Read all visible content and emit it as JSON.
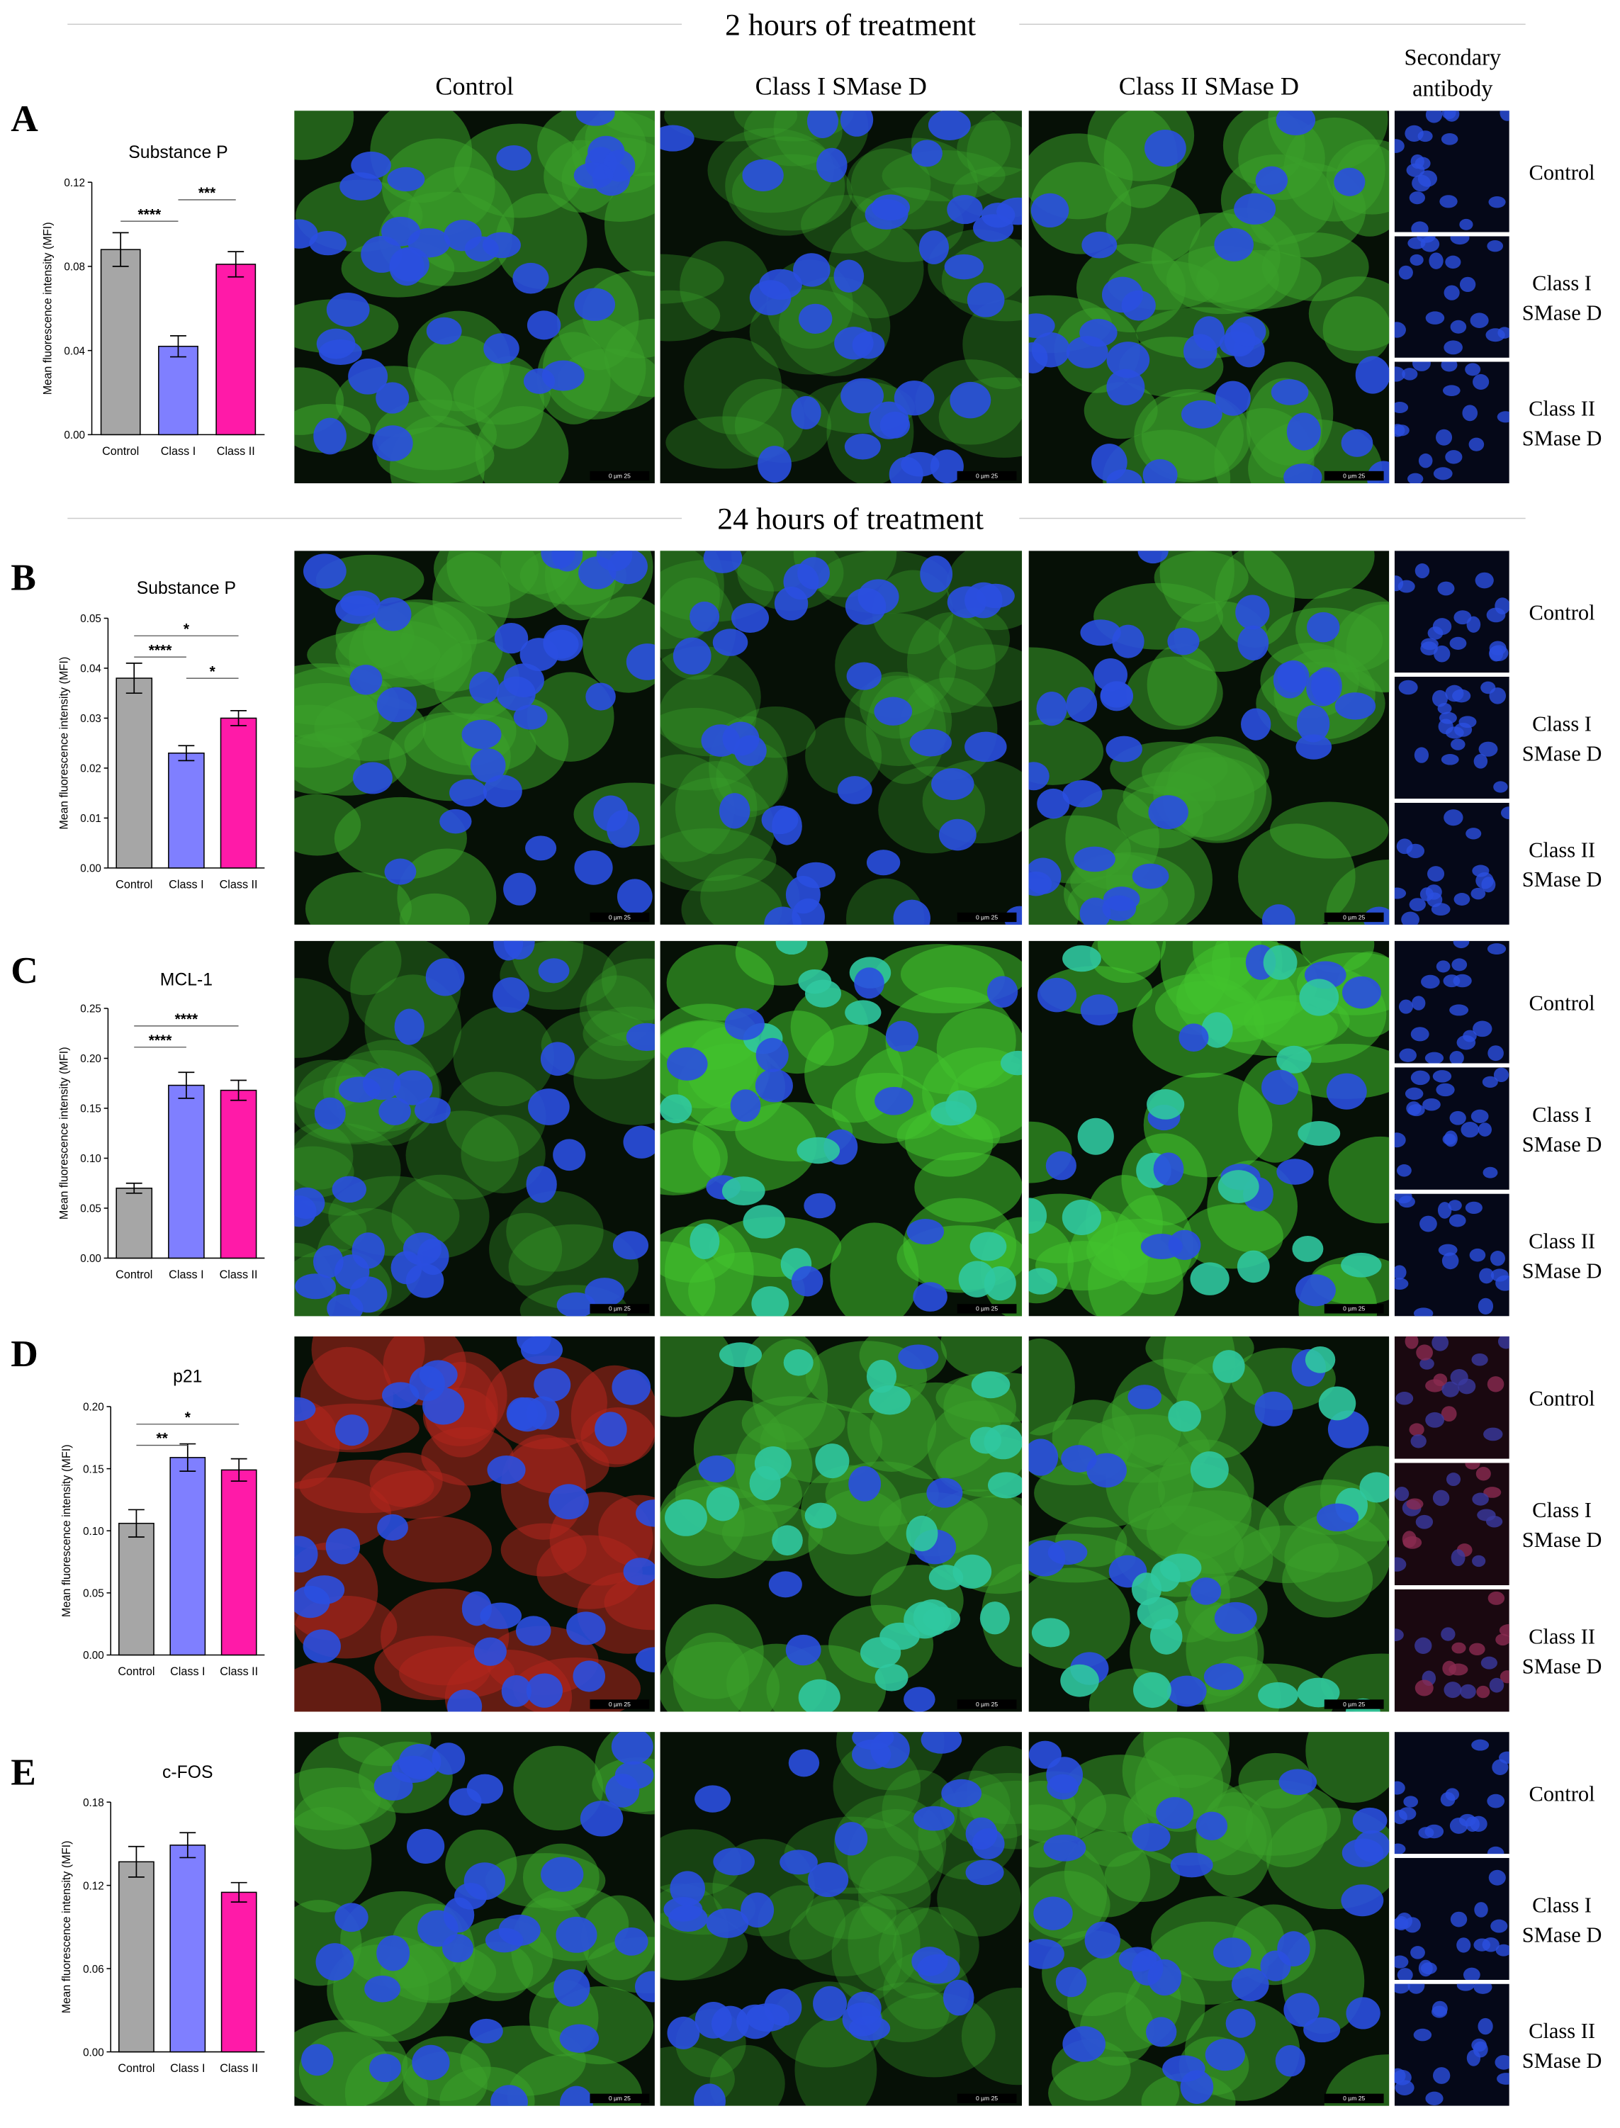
{
  "figure": {
    "headers": [
      "2 hours of treatment",
      "24 hours of treatment"
    ],
    "columns": [
      "Control",
      "Class I SMase D",
      "Class II SMase D"
    ],
    "secondary_header": [
      "Secondary",
      "antibody"
    ],
    "secondary_rows": [
      [
        "Control"
      ],
      [
        "Class I",
        "SMase D"
      ],
      [
        "Class II",
        "SMase D"
      ]
    ],
    "scale_bar": "0   µm   25"
  },
  "chart_data": [
    {
      "type": "bar",
      "panel": "A",
      "title": "Substance P",
      "y_label": "Mean fluorescence intensity (MFI)",
      "categories": [
        "Control",
        "Class I",
        "Class II"
      ],
      "values": [
        0.088,
        0.042,
        0.081
      ],
      "errors": [
        0.008,
        0.005,
        0.006
      ],
      "colors": [
        "#a6a6a6",
        "#7f7fff",
        "#ff1aa8"
      ],
      "ylim": [
        0,
        0.12
      ],
      "yticks": [
        {
          "value": 0,
          "label": "0.00"
        },
        {
          "value": 0.04,
          "label": "0.04"
        },
        {
          "value": 0.08,
          "label": "0.08"
        },
        {
          "value": 0.12,
          "label": "0.12"
        }
      ],
      "significance": [
        {
          "pair": [
            "Class I",
            "Class II"
          ],
          "label": "***"
        },
        {
          "pair": [
            "Control",
            "Class I"
          ],
          "label": "****"
        }
      ]
    },
    {
      "type": "bar",
      "panel": "B",
      "title": "Substance P",
      "y_label": "Mean fluorescence intensity (MFI)",
      "categories": [
        "Control",
        "Class I",
        "Class II"
      ],
      "values": [
        0.038,
        0.023,
        0.03
      ],
      "errors": [
        0.003,
        0.0015,
        0.0015
      ],
      "colors": [
        "#a6a6a6",
        "#7f7fff",
        "#ff1aa8"
      ],
      "ylim": [
        0,
        0.05
      ],
      "yticks": [
        {
          "value": 0,
          "label": "0.00"
        },
        {
          "value": 0.01,
          "label": "0.01"
        },
        {
          "value": 0.02,
          "label": "0.02"
        },
        {
          "value": 0.03,
          "label": "0.03"
        },
        {
          "value": 0.04,
          "label": "0.04"
        },
        {
          "value": 0.05,
          "label": "0.05"
        }
      ],
      "significance": [
        {
          "pair": [
            "Control",
            "Class II"
          ],
          "label": "*"
        },
        {
          "pair": [
            "Control",
            "Class I"
          ],
          "label": "****"
        },
        {
          "pair": [
            "Class I",
            "Class II"
          ],
          "label": "*"
        }
      ]
    },
    {
      "type": "bar",
      "panel": "C",
      "title": "MCL-1",
      "y_label": "Mean fluorescence intensity (MFI)",
      "categories": [
        "Control",
        "Class I",
        "Class II"
      ],
      "values": [
        0.07,
        0.173,
        0.168
      ],
      "errors": [
        0.005,
        0.013,
        0.01
      ],
      "colors": [
        "#a6a6a6",
        "#7f7fff",
        "#ff1aa8"
      ],
      "ylim": [
        0,
        0.25
      ],
      "yticks": [
        {
          "value": 0,
          "label": "0.00"
        },
        {
          "value": 0.05,
          "label": "0.05"
        },
        {
          "value": 0.1,
          "label": "0.10"
        },
        {
          "value": 0.15,
          "label": "0.15"
        },
        {
          "value": 0.2,
          "label": "0.20"
        },
        {
          "value": 0.25,
          "label": "0.25"
        }
      ],
      "significance": [
        {
          "pair": [
            "Control",
            "Class II"
          ],
          "label": "****"
        },
        {
          "pair": [
            "Control",
            "Class I"
          ],
          "label": "****"
        }
      ]
    },
    {
      "type": "bar",
      "panel": "D",
      "title": "p21",
      "y_label": "Mean fluorescence intensity (MFI)",
      "categories": [
        "Control",
        "Class I",
        "Class II"
      ],
      "values": [
        0.106,
        0.159,
        0.149
      ],
      "errors": [
        0.011,
        0.011,
        0.009
      ],
      "colors": [
        "#a6a6a6",
        "#7f7fff",
        "#ff1aa8"
      ],
      "ylim": [
        0,
        0.2
      ],
      "yticks": [
        {
          "value": 0,
          "label": "0.00"
        },
        {
          "value": 0.05,
          "label": "0.05"
        },
        {
          "value": 0.1,
          "label": "0.10"
        },
        {
          "value": 0.15,
          "label": "0.15"
        },
        {
          "value": 0.2,
          "label": "0.20"
        }
      ],
      "significance": [
        {
          "pair": [
            "Control",
            "Class II"
          ],
          "label": "*"
        },
        {
          "pair": [
            "Control",
            "Class I"
          ],
          "label": "**"
        }
      ]
    },
    {
      "type": "bar",
      "panel": "E",
      "title": "c-FOS",
      "y_label": "Mean fluorescence intensity (MFI)",
      "categories": [
        "Control",
        "Class I",
        "Class II"
      ],
      "values": [
        0.137,
        0.149,
        0.115
      ],
      "errors": [
        0.011,
        0.009,
        0.007
      ],
      "colors": [
        "#a6a6a6",
        "#7f7fff",
        "#ff1aa8"
      ],
      "ylim": [
        0,
        0.18
      ],
      "yticks": [
        {
          "value": 0,
          "label": "0.00"
        },
        {
          "value": 0.06,
          "label": "0.06"
        },
        {
          "value": 0.12,
          "label": "0.12"
        },
        {
          "value": 0.18,
          "label": "0.18"
        }
      ],
      "significance": []
    }
  ]
}
